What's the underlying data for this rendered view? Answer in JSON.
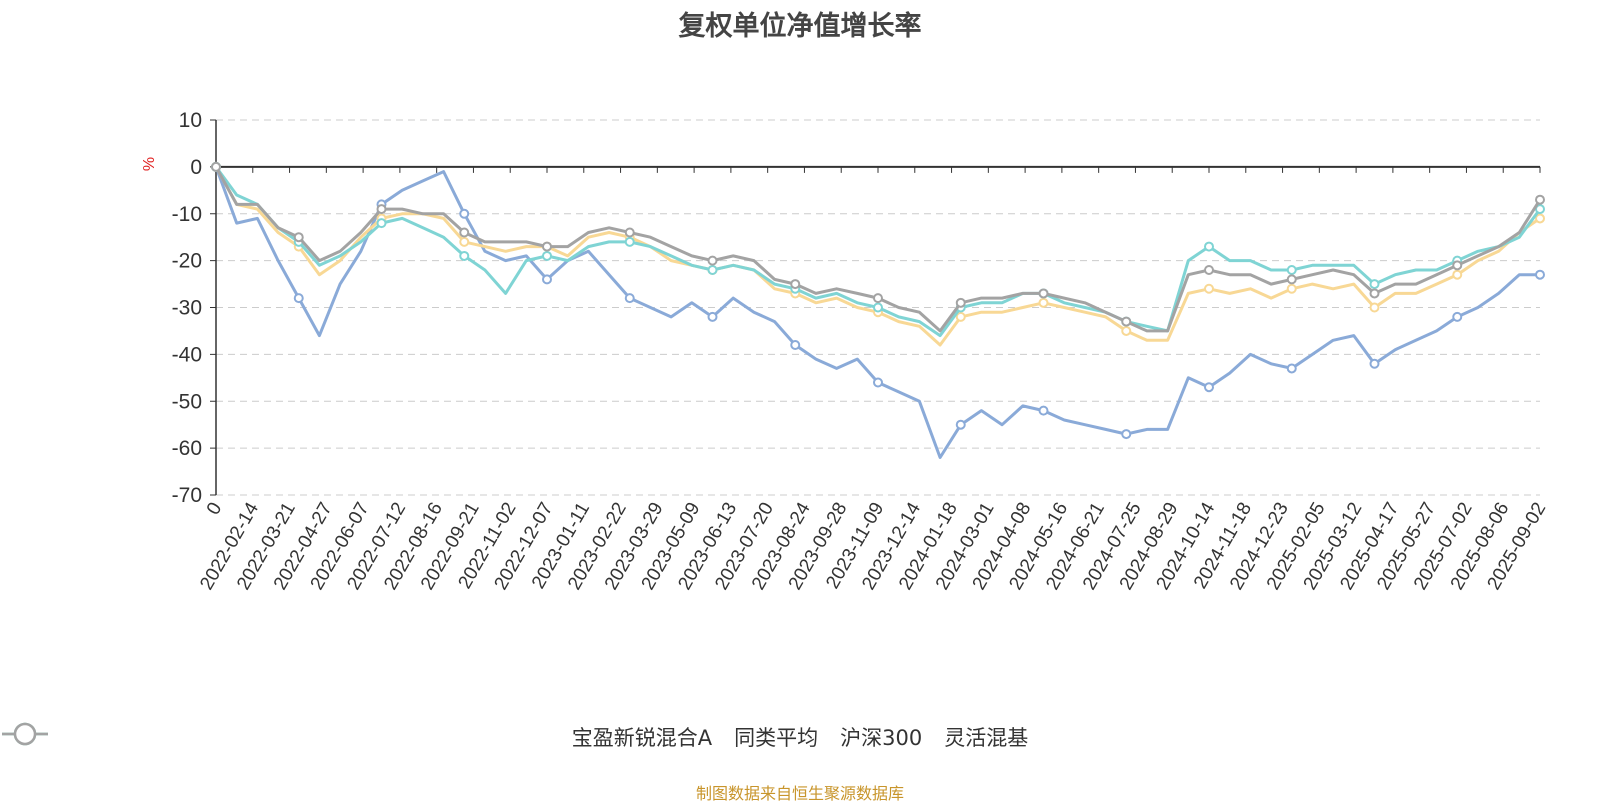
{
  "source_note": "制图数据来自恒生聚源数据库",
  "chart_data": {
    "type": "line",
    "title": "复权单位净值增长率",
    "ylabel": "%",
    "ylim": [
      -70,
      10
    ],
    "yticks": [
      10,
      0,
      -10,
      -20,
      -30,
      -40,
      -50,
      -60,
      -70
    ],
    "grid": true,
    "legend_position": "bottom",
    "x_tick_labels": [
      "0",
      "2022-02-14",
      "2022-03-21",
      "2022-04-27",
      "2022-06-07",
      "2022-07-12",
      "2022-08-16",
      "2022-09-21",
      "2022-11-02",
      "2022-12-07",
      "2023-01-11",
      "2023-02-22",
      "2023-03-29",
      "2023-05-09",
      "2023-06-13",
      "2023-07-20",
      "2023-08-24",
      "2023-09-28",
      "2023-11-09",
      "2023-12-14",
      "2024-01-18",
      "2024-03-01",
      "2024-04-08",
      "2024-05-16",
      "2024-06-21",
      "2024-07-25",
      "2024-08-29",
      "2024-10-14",
      "2024-11-18",
      "2024-12-23",
      "2025-02-05",
      "2025-03-12",
      "2025-04-17",
      "2025-05-27",
      "2025-07-02",
      "2025-08-06",
      "2025-09-02"
    ],
    "series": [
      {
        "name": "宝盈新锐混合A",
        "color": "#8aaad8",
        "values": [
          0,
          -12,
          -11,
          -20,
          -28,
          -36,
          -25,
          -18,
          -8,
          -5,
          -3,
          -1,
          -10,
          -18,
          -20,
          -19,
          -24,
          -20,
          -18,
          -23,
          -28,
          -30,
          -32,
          -29,
          -32,
          -28,
          -31,
          -33,
          -38,
          -41,
          -43,
          -41,
          -46,
          -48,
          -50,
          -62,
          -55,
          -52,
          -55,
          -51,
          -52,
          -54,
          -55,
          -56,
          -57,
          -56,
          -56,
          -45,
          -47,
          -44,
          -40,
          -42,
          -43,
          -40,
          -37,
          -36,
          -42,
          -39,
          -37,
          -35,
          -32,
          -30,
          -27,
          -23,
          -23
        ]
      },
      {
        "name": "同类平均",
        "color": "#f8d895",
        "values": [
          0,
          -8,
          -9,
          -14,
          -17,
          -23,
          -20,
          -15,
          -11,
          -10,
          -10,
          -11,
          -16,
          -17,
          -18,
          -17,
          -17,
          -19,
          -15,
          -14,
          -15,
          -17,
          -20,
          -21,
          -22,
          -21,
          -22,
          -26,
          -27,
          -29,
          -28,
          -30,
          -31,
          -33,
          -34,
          -38,
          -32,
          -31,
          -31,
          -30,
          -29,
          -30,
          -31,
          -32,
          -35,
          -37,
          -37,
          -27,
          -26,
          -27,
          -26,
          -28,
          -26,
          -25,
          -26,
          -25,
          -30,
          -27,
          -27,
          -25,
          -23,
          -20,
          -18,
          -14,
          -11
        ]
      },
      {
        "name": "沪深300",
        "color": "#7fd4d4",
        "values": [
          0,
          -6,
          -8,
          -13,
          -16,
          -21,
          -19,
          -16,
          -12,
          -11,
          -13,
          -15,
          -19,
          -22,
          -27,
          -20,
          -19,
          -20,
          -17,
          -16,
          -16,
          -17,
          -19,
          -21,
          -22,
          -21,
          -22,
          -25,
          -26,
          -28,
          -27,
          -29,
          -30,
          -32,
          -33,
          -36,
          -30,
          -29,
          -29,
          -27,
          -27,
          -29,
          -30,
          -31,
          -33,
          -34,
          -35,
          -20,
          -17,
          -20,
          -20,
          -22,
          -22,
          -21,
          -21,
          -21,
          -25,
          -23,
          -22,
          -22,
          -20,
          -18,
          -17,
          -15,
          -9
        ]
      },
      {
        "name": "灵活混基",
        "color": "#a3a3a3",
        "values": [
          0,
          -8,
          -8,
          -13,
          -15,
          -20,
          -18,
          -14,
          -9,
          -9,
          -10,
          -10,
          -14,
          -16,
          -16,
          -16,
          -17,
          -17,
          -14,
          -13,
          -14,
          -15,
          -17,
          -19,
          -20,
          -19,
          -20,
          -24,
          -25,
          -27,
          -26,
          -27,
          -28,
          -30,
          -31,
          -35,
          -29,
          -28,
          -28,
          -27,
          -27,
          -28,
          -29,
          -31,
          -33,
          -35,
          -35,
          -23,
          -22,
          -23,
          -23,
          -25,
          -24,
          -23,
          -22,
          -23,
          -27,
          -25,
          -25,
          -23,
          -21,
          -19,
          -17,
          -14,
          -7
        ]
      }
    ]
  }
}
